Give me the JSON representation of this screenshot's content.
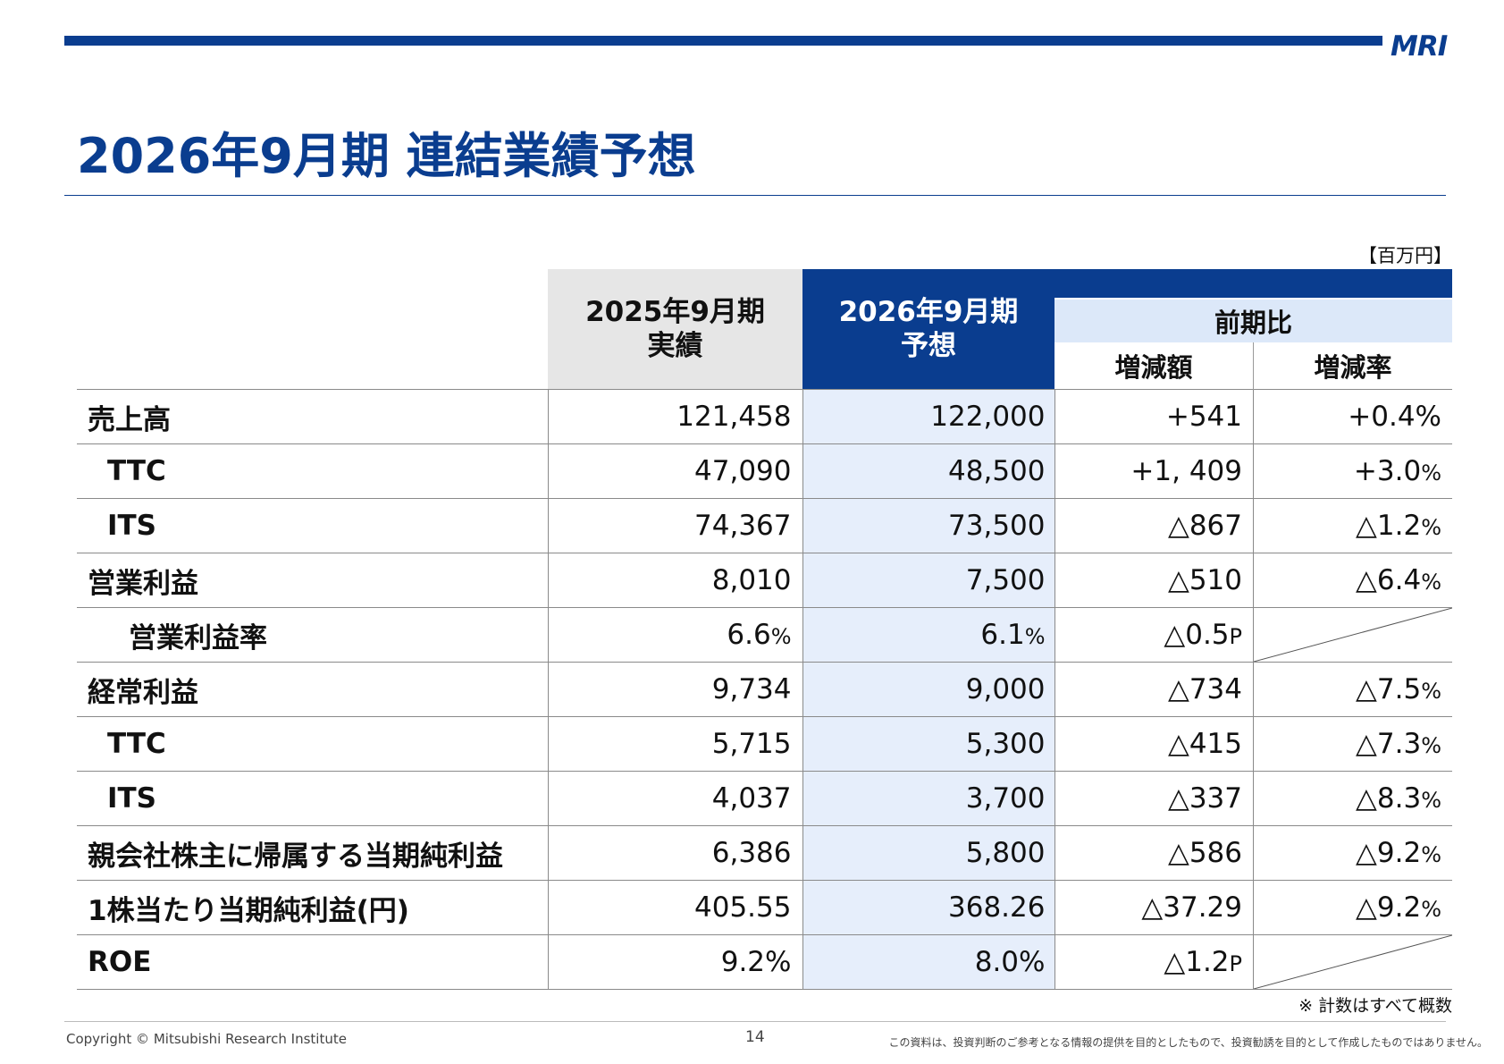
{
  "header": {
    "logo": "MRI",
    "title": "2026年9月期 連結業績予想"
  },
  "table": {
    "unit": "【百万円】",
    "columns": {
      "prev_line1": "2025年9月期",
      "prev_line2": "実績",
      "forecast_line1": "2026年9月期",
      "forecast_line2": "予想",
      "yoy": "前期比",
      "diff": "増減額",
      "rate": "増減率"
    },
    "rows": [
      {
        "label": "売上高",
        "prev": "121,458",
        "forecast": "122,000",
        "diff": "+541",
        "rate": "+0.4%"
      },
      {
        "label": "TTC",
        "prev": "47,090",
        "forecast": "48,500",
        "diff": "+1, 409",
        "rate": "+3.0",
        "rate_suffix": "%"
      },
      {
        "label": "ITS",
        "prev": "74,367",
        "forecast": "73,500",
        "diff": "△867",
        "rate": "△1.2",
        "rate_suffix": "%"
      },
      {
        "label": "営業利益",
        "prev": "8,010",
        "forecast": "7,500",
        "diff": "△510",
        "rate": "△6.4",
        "rate_suffix": "%"
      },
      {
        "label": "営業利益率",
        "prev": "6.6",
        "prev_suffix": "%",
        "forecast": "6.1",
        "forecast_suffix": "%",
        "diff": "△0.5",
        "diff_suffix": "P"
      },
      {
        "label": "経常利益",
        "prev": "9,734",
        "forecast": "9,000",
        "diff": "△734",
        "rate": "△7.5",
        "rate_suffix": "%"
      },
      {
        "label": "TTC",
        "prev": "5,715",
        "forecast": "5,300",
        "diff": "△415",
        "rate": "△7.3",
        "rate_suffix": "%"
      },
      {
        "label": "ITS",
        "prev": "4,037",
        "forecast": "3,700",
        "diff": "△337",
        "rate": "△8.3",
        "rate_suffix": "%"
      },
      {
        "label": "親会社株主に帰属する当期純利益",
        "prev": "6,386",
        "forecast": "5,800",
        "diff": "△586",
        "rate": "△9.2",
        "rate_suffix": "%"
      },
      {
        "label": "1株当たり当期純利益(円)",
        "prev": "405.55",
        "forecast": "368.26",
        "diff": "△37.29",
        "rate": "△9.2",
        "rate_suffix": "%"
      },
      {
        "label": "ROE",
        "prev": "9.2%",
        "forecast": "8.0%",
        "diff": "△1.2",
        "diff_suffix": "P"
      }
    ],
    "note": "※ 計数はすべて概数"
  },
  "footer": {
    "copyright": "Copyright © Mitsubishi Research Institute",
    "page": "14",
    "disclaimer": "この資料は、投資判断のご参考となる情報の提供を目的としたもので、投資勧誘を目的として作成したものではありません。"
  }
}
